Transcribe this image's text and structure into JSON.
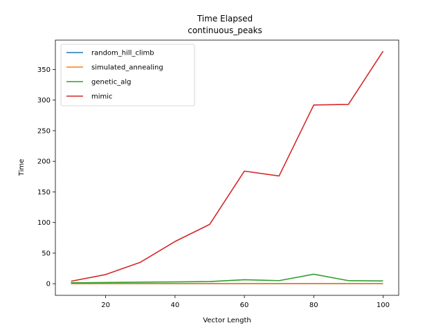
{
  "chart_data": {
    "type": "line",
    "title": "Time Elapsed",
    "subtitle": "continuous_peaks",
    "xlabel": "Vector Length",
    "ylabel": "Time",
    "x": [
      10,
      20,
      30,
      40,
      50,
      60,
      70,
      80,
      90,
      100
    ],
    "xlim": [
      5.5,
      104.5
    ],
    "ylim": [
      -19,
      398
    ],
    "xticks": [
      20,
      40,
      60,
      80,
      100
    ],
    "yticks": [
      0,
      50,
      100,
      150,
      200,
      250,
      300,
      350
    ],
    "grid": false,
    "legend_position": "top-left",
    "series": [
      {
        "name": "random_hill_climb",
        "color": "#1f77b4",
        "values": [
          0.1,
          0.1,
          0.1,
          0.1,
          0.1,
          0.1,
          0.1,
          0.1,
          0.1,
          0.1
        ]
      },
      {
        "name": "simulated_annealing",
        "color": "#ff7f0e",
        "values": [
          0.2,
          0.2,
          0.2,
          0.2,
          0.2,
          0.2,
          0.2,
          0.2,
          0.2,
          0.2
        ]
      },
      {
        "name": "genetic_alg",
        "color": "#2ca02c",
        "values": [
          1.5,
          2,
          2.5,
          3,
          3.5,
          6.5,
          5,
          15.5,
          5,
          4.5
        ]
      },
      {
        "name": "mimic",
        "color": "#d62728",
        "values": [
          4,
          15,
          35,
          69,
          97,
          184,
          176,
          292,
          293,
          380
        ]
      }
    ]
  }
}
